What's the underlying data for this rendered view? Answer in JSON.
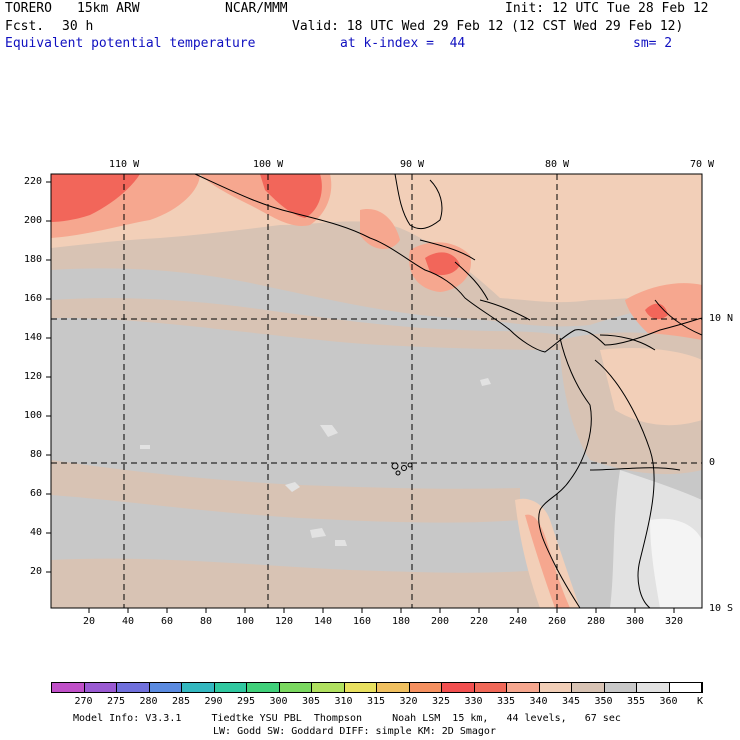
{
  "header": {
    "model": "TORERO",
    "resolution": "15km ARW",
    "center": "NCAR/MMM",
    "init": "Init: 12 UTC Tue 28 Feb 12",
    "fcst_label": "Fcst.",
    "fcst_value": "30 h",
    "valid": "Valid: 18 UTC Wed 29 Feb 12 (12 CST Wed 29 Feb 12)",
    "field": "Equivalent potential temperature",
    "level": "at k-index =  44",
    "smoothing": "sm= 2"
  },
  "map": {
    "lon_labels": [
      "110 W",
      "100 W",
      "90 W",
      "80 W",
      "70 W"
    ],
    "lat_labels": [
      "10 N",
      "0",
      "10 S"
    ],
    "y_ticks": [
      "220",
      "200",
      "180",
      "160",
      "140",
      "120",
      "100",
      "80",
      "60",
      "40",
      "20"
    ],
    "x_ticks": [
      "20",
      "40",
      "60",
      "80",
      "100",
      "120",
      "140",
      "160",
      "180",
      "200",
      "220",
      "240",
      "260",
      "280",
      "300",
      "320"
    ],
    "field_colors": {
      "c345": "#d8c3b4",
      "c350": "#c8c8c8",
      "c340": "#f2cfb8",
      "c335": "#f6a78f",
      "c330": "#f2665a",
      "c355": "#e2e2e2",
      "c360": "#f4f4f4"
    }
  },
  "colorbar": {
    "labels": [
      "270",
      "275",
      "280",
      "285",
      "290",
      "295",
      "300",
      "305",
      "310",
      "315",
      "320",
      "325",
      "330",
      "335",
      "340",
      "345",
      "350",
      "355",
      "360"
    ],
    "unit": "K",
    "colors": [
      "#c050c8",
      "#9a5ad2",
      "#7070dc",
      "#5a8ae0",
      "#34b8c0",
      "#30c8a0",
      "#40d07a",
      "#7ad860",
      "#b0e060",
      "#e8e060",
      "#f0c060",
      "#f59060",
      "#f25050",
      "#f06858",
      "#f6a78f",
      "#f2cfb8",
      "#d8c3b4",
      "#c8c8c8",
      "#e2e2e2",
      "#ffffff"
    ]
  },
  "footer": {
    "line1": "Model Info: V3.3.1     Tiedtke YSU PBL  Thompson     Noah LSM  15 km,   44 levels,   67 sec",
    "line2": "LW: Godd SW: Goddard DIFF: simple KM: 2D Smagor"
  }
}
